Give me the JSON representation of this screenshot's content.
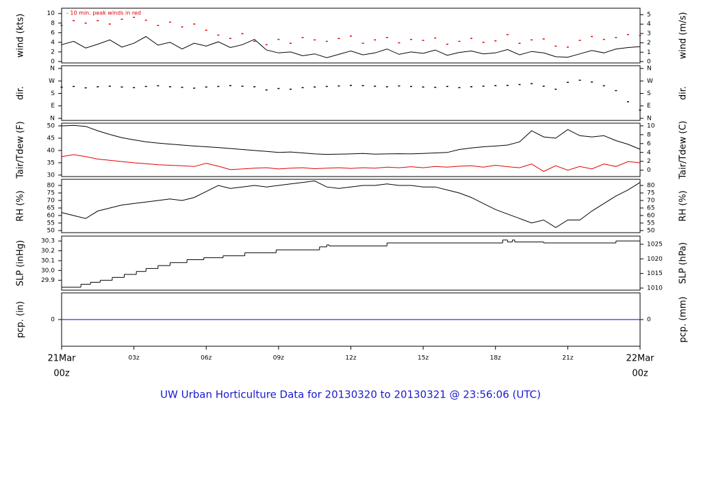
{
  "chart_data": [
    {
      "type": "line",
      "ylabel": "wind (kts)",
      "y2label": "wind (m/s)",
      "annotation": "- 10 min. peak winds in red",
      "xlim": [
        0,
        24
      ],
      "ylim": [
        -0.3,
        11.1
      ],
      "yticks": [
        0,
        2,
        4,
        6,
        8,
        10
      ],
      "y2lim": [
        -0.15,
        5.7
      ],
      "y2ticks": [
        0,
        1,
        2,
        3,
        4,
        5
      ],
      "x": [
        0,
        0.5,
        1,
        1.5,
        2,
        2.5,
        3,
        3.5,
        4,
        4.5,
        5,
        5.5,
        6,
        6.5,
        7,
        7.5,
        8,
        8.5,
        9,
        9.5,
        10,
        10.5,
        11,
        11.5,
        12,
        12.5,
        13,
        13.5,
        14,
        14.5,
        15,
        15.5,
        16,
        16.5,
        17,
        17.5,
        18,
        18.5,
        19,
        19.5,
        20,
        20.5,
        21,
        21.5,
        22,
        22.5,
        23,
        23.5,
        24
      ],
      "series": [
        {
          "color": "#000000",
          "style": "line",
          "values": [
            3.5,
            4.2,
            2.8,
            3.6,
            4.5,
            3.0,
            3.8,
            5.2,
            3.4,
            4.0,
            2.6,
            3.8,
            3.2,
            4.1,
            2.9,
            3.5,
            4.6,
            2.4,
            1.8,
            2.0,
            1.2,
            1.6,
            0.8,
            1.5,
            2.2,
            1.4,
            1.8,
            2.6,
            1.5,
            2.0,
            1.7,
            2.4,
            1.3,
            1.9,
            2.2,
            1.6,
            1.8,
            2.5,
            1.4,
            2.1,
            1.8,
            1.0,
            0.9,
            1.6,
            2.3,
            1.8,
            2.6,
            2.9,
            3.1
          ]
        },
        {
          "color": "#e00000",
          "style": "dots",
          "values": [
            7.5,
            8.5,
            8.0,
            8.5,
            7.8,
            8.8,
            9.2,
            8.6,
            7.5,
            8.2,
            7.2,
            7.8,
            6.5,
            5.5,
            4.8,
            5.8,
            4.2,
            3.5,
            4.6,
            3.8,
            5.0,
            4.5,
            4.2,
            4.8,
            5.3,
            3.8,
            4.5,
            5.0,
            3.9,
            4.6,
            4.4,
            4.9,
            3.6,
            4.2,
            4.8,
            4.0,
            4.3,
            5.6,
            3.8,
            4.5,
            4.7,
            3.2,
            3.0,
            4.4,
            5.2,
            4.6,
            5.0,
            5.6,
            5.4
          ]
        }
      ]
    },
    {
      "type": "scatter",
      "ylabel": "dir.",
      "y2label": "dir.",
      "xlim": [
        0,
        24
      ],
      "ylim": [
        -15,
        380
      ],
      "yticks": [
        {
          "value": 0,
          "label": "N"
        },
        {
          "value": 90,
          "label": "E"
        },
        {
          "value": 180,
          "label": "S"
        },
        {
          "value": 270,
          "label": "W"
        },
        {
          "value": 360,
          "label": "N"
        }
      ],
      "y2lim": [
        -15,
        380
      ],
      "y2ticks": [
        {
          "value": 0,
          "label": "N"
        },
        {
          "value": 90,
          "label": "E"
        },
        {
          "value": 180,
          "label": "S"
        },
        {
          "value": 270,
          "label": "W"
        },
        {
          "value": 360,
          "label": "N"
        }
      ],
      "x": [
        0,
        0.5,
        1,
        1.5,
        2,
        2.5,
        3,
        3.5,
        4,
        4.5,
        5,
        5.5,
        6,
        6.5,
        7,
        7.5,
        8,
        8.5,
        9,
        9.5,
        10,
        10.5,
        11,
        11.5,
        12,
        12.5,
        13,
        13.5,
        14,
        14.5,
        15,
        15.5,
        16,
        16.5,
        17,
        17.5,
        18,
        18.5,
        19,
        19.5,
        20,
        20.5,
        21,
        21.5,
        22,
        22.5,
        23,
        23.5,
        24
      ],
      "series": [
        {
          "color": "#000000",
          "style": "dots",
          "values": [
            225,
            230,
            220,
            228,
            232,
            226,
            222,
            230,
            235,
            228,
            224,
            218,
            226,
            230,
            236,
            232,
            228,
            205,
            215,
            210,
            222,
            226,
            230,
            234,
            238,
            236,
            232,
            228,
            234,
            230,
            226,
            224,
            230,
            222,
            228,
            232,
            236,
            238,
            244,
            250,
            232,
            210,
            260,
            275,
            262,
            235,
            200,
            120,
            60
          ]
        }
      ]
    },
    {
      "type": "line",
      "ylabel": "Tair/Tdew (F)",
      "y2label": "Tair/Tdew (C)",
      "xlim": [
        0,
        24
      ],
      "ylim": [
        29.4,
        51.1
      ],
      "yticks": [
        30,
        35,
        40,
        45,
        50
      ],
      "y2lim": [
        -1.44,
        10.6
      ],
      "y2ticks": [
        0,
        2,
        4,
        6,
        8,
        10
      ],
      "x": [
        0,
        0.5,
        1,
        1.5,
        2,
        2.5,
        3,
        3.5,
        4,
        4.5,
        5,
        5.5,
        6,
        6.5,
        7,
        7.5,
        8,
        8.5,
        9,
        9.5,
        10,
        10.5,
        11,
        11.5,
        12,
        12.5,
        13,
        13.5,
        14,
        14.5,
        15,
        15.5,
        16,
        16.5,
        17,
        17.5,
        18,
        18.5,
        19,
        19.5,
        20,
        20.5,
        21,
        21.5,
        22,
        22.5,
        23,
        23.5,
        24
      ],
      "series": [
        {
          "color": "#000000",
          "style": "line",
          "values": [
            50,
            50.2,
            49.8,
            48,
            46.5,
            45.2,
            44.3,
            43.5,
            43,
            42.6,
            42.2,
            41.8,
            41.5,
            41.2,
            40.8,
            40.4,
            40,
            39.6,
            39.2,
            39.4,
            39,
            38.6,
            38.4,
            38.5,
            38.6,
            38.8,
            38.5,
            38.6,
            38.7,
            38.6,
            38.8,
            39,
            39.2,
            40.4,
            41,
            41.5,
            41.8,
            42.2,
            43.5,
            48,
            45.5,
            45,
            48.5,
            46,
            45.5,
            46,
            44,
            42.5,
            40.5
          ]
        },
        {
          "color": "#e00000",
          "style": "line",
          "values": [
            37.5,
            38.3,
            37.5,
            36.5,
            36,
            35.5,
            35,
            34.6,
            34.2,
            34,
            33.8,
            33.5,
            34.8,
            33.6,
            32.2,
            32.5,
            32.8,
            33,
            32.5,
            32.8,
            33,
            32.6,
            32.8,
            33,
            32.7,
            33,
            32.8,
            33.2,
            33,
            33.4,
            33,
            33.5,
            33.2,
            33.6,
            33.8,
            33.2,
            34,
            33.4,
            33,
            34.5,
            31.5,
            33.8,
            32,
            33.5,
            32.5,
            34.5,
            33.5,
            35.5,
            35
          ]
        }
      ]
    },
    {
      "type": "line",
      "ylabel": "RH (%)",
      "y2label": "RH (%)",
      "xlim": [
        0,
        24
      ],
      "ylim": [
        48.6,
        84.1
      ],
      "yticks": [
        50,
        55,
        60,
        65,
        70,
        75,
        80
      ],
      "y2lim": [
        48.6,
        84.1
      ],
      "y2ticks": [
        50,
        55,
        60,
        65,
        70,
        75,
        80
      ],
      "x": [
        0,
        0.5,
        1,
        1.5,
        2,
        2.5,
        3,
        3.5,
        4,
        4.5,
        5,
        5.5,
        6,
        6.5,
        7,
        7.5,
        8,
        8.5,
        9,
        9.5,
        10,
        10.5,
        11,
        11.5,
        12,
        12.5,
        13,
        13.5,
        14,
        14.5,
        15,
        15.5,
        16,
        16.5,
        17,
        17.5,
        18,
        18.5,
        19,
        19.5,
        20,
        20.5,
        21,
        21.5,
        22,
        22.5,
        23,
        23.5,
        24
      ],
      "series": [
        {
          "color": "#000000",
          "style": "line",
          "values": [
            62,
            60,
            58,
            63,
            65,
            67,
            68,
            69,
            70,
            71,
            70,
            72,
            76,
            80,
            78,
            79,
            80,
            79,
            80,
            81,
            82,
            83,
            79,
            78,
            79,
            80,
            80,
            81,
            80,
            80,
            79,
            79,
            77,
            75,
            72,
            68,
            64,
            61,
            58,
            55,
            57,
            52,
            57,
            57,
            63,
            68,
            73,
            77,
            82
          ]
        }
      ]
    },
    {
      "type": "step",
      "ylabel": "SLP (inHg)",
      "y2label": "SLP (hPa)",
      "xlim": [
        0,
        24
      ],
      "ylim": [
        29.8,
        30.35
      ],
      "yticks": [
        29.9,
        {
          "value": 30,
          "label": "30.0"
        },
        30.1,
        30.2,
        30.3
      ],
      "y2lim": [
        1009.3,
        1027.8
      ],
      "y2ticks": [
        1010,
        1015,
        1020,
        1025
      ],
      "x": [
        0,
        0.8,
        1.2,
        1.6,
        2.1,
        2.6,
        3.1,
        3.5,
        4,
        4.5,
        5.2,
        5.9,
        6.7,
        7.6,
        8.9,
        10.7,
        11,
        11.1,
        13.5,
        18.3,
        18.5,
        18.7,
        18.8,
        20,
        23,
        24
      ],
      "series": [
        {
          "color": "#000000",
          "style": "step",
          "values": [
            29.83,
            29.86,
            29.88,
            29.9,
            29.93,
            29.96,
            29.99,
            30.02,
            30.05,
            30.08,
            30.11,
            30.13,
            30.15,
            30.18,
            30.21,
            30.24,
            30.26,
            30.25,
            30.28,
            30.31,
            30.29,
            30.31,
            30.29,
            30.28,
            30.3,
            30.3
          ]
        }
      ]
    },
    {
      "type": "line",
      "ylabel": "pcp. (in)",
      "y2label": "pcp. (mm)",
      "xlim": [
        0,
        24
      ],
      "ylim": [
        -1,
        1
      ],
      "yticks": [
        0
      ],
      "y2lim": [
        -1,
        1
      ],
      "y2ticks": [
        0
      ],
      "x": [
        0,
        24
      ],
      "series": [
        {
          "color": "#0000cc",
          "style": "line",
          "values": [
            0,
            0
          ]
        }
      ],
      "xticks": [
        {
          "value": 0,
          "label": [
            "21Mar",
            "00z"
          ]
        },
        {
          "value": 3,
          "label": "03z"
        },
        {
          "value": 6,
          "label": "06z"
        },
        {
          "value": 9,
          "label": "09z"
        },
        {
          "value": 12,
          "label": "12z"
        },
        {
          "value": 15,
          "label": "15z"
        },
        {
          "value": 18,
          "label": "18z"
        },
        {
          "value": 21,
          "label": "21z"
        },
        {
          "value": 24,
          "label": [
            "22Mar",
            "00z"
          ]
        }
      ],
      "title": "UW Urban Horticulture Data for 20130320  to  20130321 @ 23:56:06  (UTC)"
    }
  ]
}
